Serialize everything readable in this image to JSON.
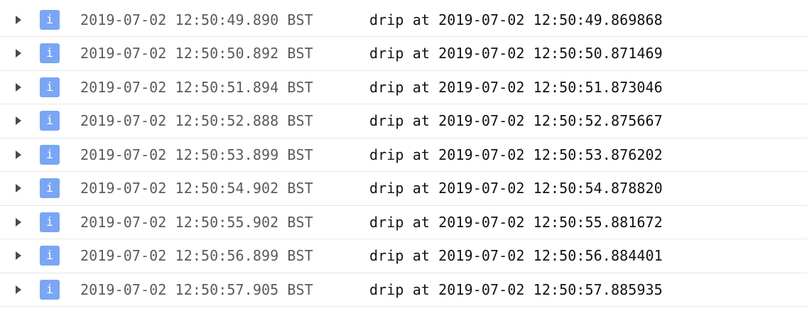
{
  "colors": {
    "info_badge": "#7aa6f5",
    "timestamp_text": "#5a5a5a",
    "message_text": "#111111",
    "row_divider": "#e6e6e6"
  },
  "log": {
    "entries": [
      {
        "level_icon": "info-icon",
        "level_glyph": "i",
        "timestamp": "2019-07-02 12:50:49.890 BST",
        "message": "drip at 2019-07-02 12:50:49.869868"
      },
      {
        "level_icon": "info-icon",
        "level_glyph": "i",
        "timestamp": "2019-07-02 12:50:50.892 BST",
        "message": "drip at 2019-07-02 12:50:50.871469"
      },
      {
        "level_icon": "info-icon",
        "level_glyph": "i",
        "timestamp": "2019-07-02 12:50:51.894 BST",
        "message": "drip at 2019-07-02 12:50:51.873046"
      },
      {
        "level_icon": "info-icon",
        "level_glyph": "i",
        "timestamp": "2019-07-02 12:50:52.888 BST",
        "message": "drip at 2019-07-02 12:50:52.875667"
      },
      {
        "level_icon": "info-icon",
        "level_glyph": "i",
        "timestamp": "2019-07-02 12:50:53.899 BST",
        "message": "drip at 2019-07-02 12:50:53.876202"
      },
      {
        "level_icon": "info-icon",
        "level_glyph": "i",
        "timestamp": "2019-07-02 12:50:54.902 BST",
        "message": "drip at 2019-07-02 12:50:54.878820"
      },
      {
        "level_icon": "info-icon",
        "level_glyph": "i",
        "timestamp": "2019-07-02 12:50:55.902 BST",
        "message": "drip at 2019-07-02 12:50:55.881672"
      },
      {
        "level_icon": "info-icon",
        "level_glyph": "i",
        "timestamp": "2019-07-02 12:50:56.899 BST",
        "message": "drip at 2019-07-02 12:50:56.884401"
      },
      {
        "level_icon": "info-icon",
        "level_glyph": "i",
        "timestamp": "2019-07-02 12:50:57.905 BST",
        "message": "drip at 2019-07-02 12:50:57.885935"
      }
    ]
  }
}
